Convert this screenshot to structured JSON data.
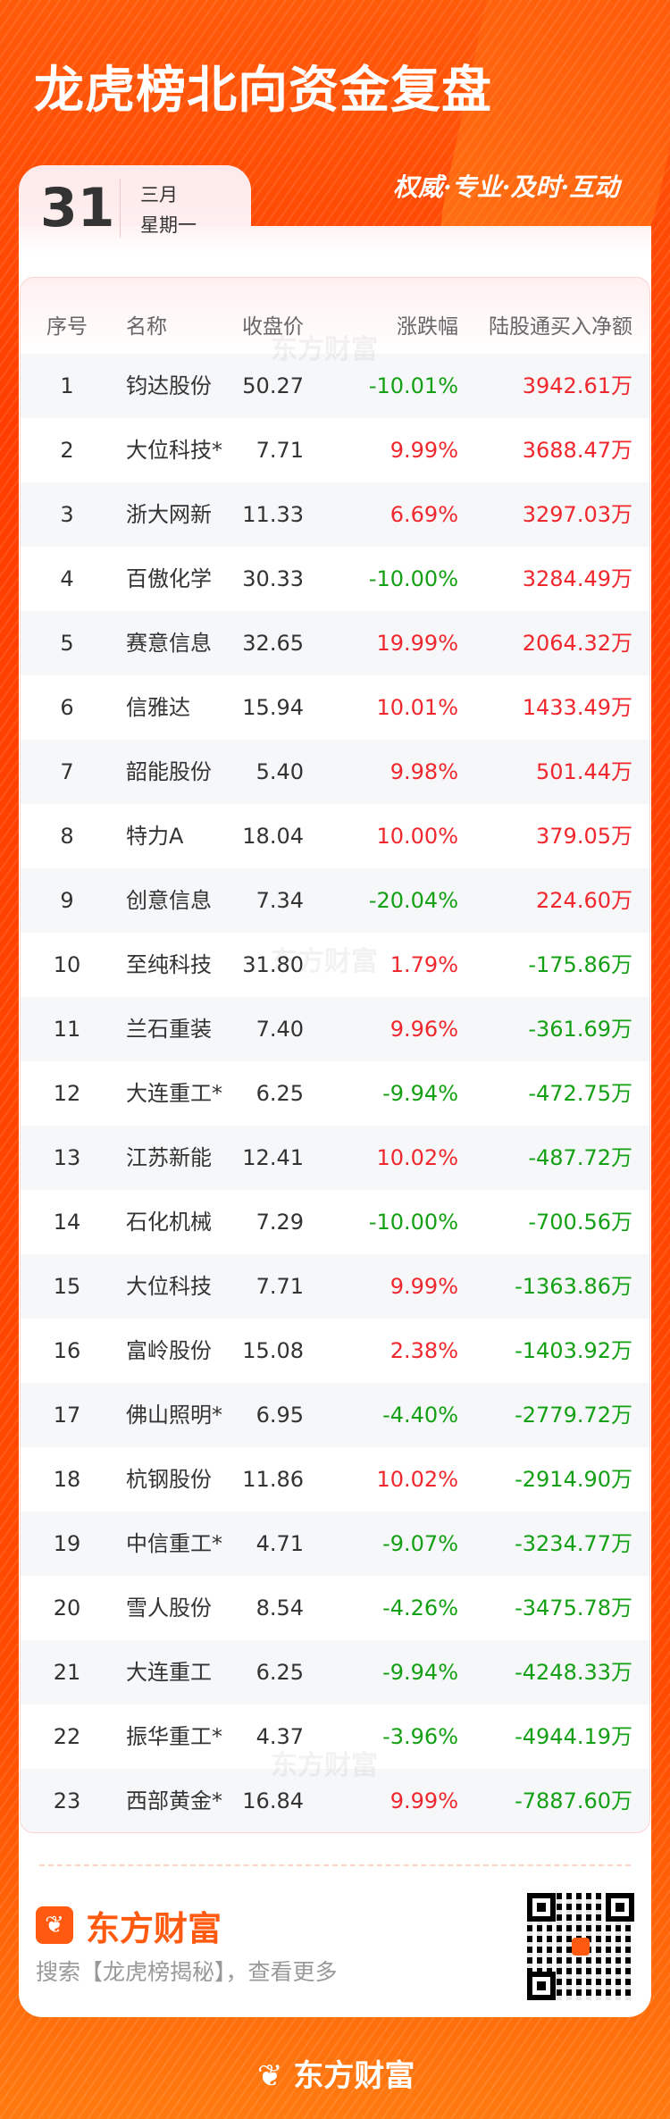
{
  "header": {
    "title": "龙虎榜北向资金复盘",
    "slogan": "权威·专业·及时·互动"
  },
  "date": {
    "day": "31",
    "month": "三月",
    "weekday": "星期一"
  },
  "table": {
    "columns": [
      "序号",
      "名称",
      "收盘价",
      "涨跌幅",
      "陆股通买入净额"
    ],
    "rows": [
      {
        "seq": "1",
        "name": "钧达股份",
        "price": "50.27",
        "change": "-10.01%",
        "net": "3942.61万"
      },
      {
        "seq": "2",
        "name": "大位科技*",
        "price": "7.71",
        "change": "9.99%",
        "net": "3688.47万"
      },
      {
        "seq": "3",
        "name": "浙大网新",
        "price": "11.33",
        "change": "6.69%",
        "net": "3297.03万"
      },
      {
        "seq": "4",
        "name": "百傲化学",
        "price": "30.33",
        "change": "-10.00%",
        "net": "3284.49万"
      },
      {
        "seq": "5",
        "name": "赛意信息",
        "price": "32.65",
        "change": "19.99%",
        "net": "2064.32万"
      },
      {
        "seq": "6",
        "name": "信雅达",
        "price": "15.94",
        "change": "10.01%",
        "net": "1433.49万"
      },
      {
        "seq": "7",
        "name": "韶能股份",
        "price": "5.40",
        "change": "9.98%",
        "net": "501.44万"
      },
      {
        "seq": "8",
        "name": "特力A",
        "price": "18.04",
        "change": "10.00%",
        "net": "379.05万"
      },
      {
        "seq": "9",
        "name": "创意信息",
        "price": "7.34",
        "change": "-20.04%",
        "net": "224.60万"
      },
      {
        "seq": "10",
        "name": "至纯科技",
        "price": "31.80",
        "change": "1.79%",
        "net": "-175.86万"
      },
      {
        "seq": "11",
        "name": "兰石重装",
        "price": "7.40",
        "change": "9.96%",
        "net": "-361.69万"
      },
      {
        "seq": "12",
        "name": "大连重工*",
        "price": "6.25",
        "change": "-9.94%",
        "net": "-472.75万"
      },
      {
        "seq": "13",
        "name": "江苏新能",
        "price": "12.41",
        "change": "10.02%",
        "net": "-487.72万"
      },
      {
        "seq": "14",
        "name": "石化机械",
        "price": "7.29",
        "change": "-10.00%",
        "net": "-700.56万"
      },
      {
        "seq": "15",
        "name": "大位科技",
        "price": "7.71",
        "change": "9.99%",
        "net": "-1363.86万"
      },
      {
        "seq": "16",
        "name": "富岭股份",
        "price": "15.08",
        "change": "2.38%",
        "net": "-1403.92万"
      },
      {
        "seq": "17",
        "name": "佛山照明*",
        "price": "6.95",
        "change": "-4.40%",
        "net": "-2779.72万"
      },
      {
        "seq": "18",
        "name": "杭钢股份",
        "price": "11.86",
        "change": "10.02%",
        "net": "-2914.90万"
      },
      {
        "seq": "19",
        "name": "中信重工*",
        "price": "4.71",
        "change": "-9.07%",
        "net": "-3234.77万"
      },
      {
        "seq": "20",
        "name": "雪人股份",
        "price": "8.54",
        "change": "-4.26%",
        "net": "-3475.78万"
      },
      {
        "seq": "21",
        "name": "大连重工",
        "price": "6.25",
        "change": "-9.94%",
        "net": "-4248.33万"
      },
      {
        "seq": "22",
        "name": "振华重工*",
        "price": "4.37",
        "change": "-3.96%",
        "net": "-4944.19万"
      },
      {
        "seq": "23",
        "name": "西部黄金*",
        "price": "16.84",
        "change": "9.99%",
        "net": "-7887.60万"
      }
    ]
  },
  "watermark": "东方财富",
  "footer": {
    "brand": "东方财富",
    "search_text": "搜索【龙虎榜揭秘】，查看更多",
    "bottom_brand": "东方财富"
  },
  "colors": {
    "up": "#f0282d",
    "down": "#14a014",
    "brand": "#ff5a10"
  }
}
